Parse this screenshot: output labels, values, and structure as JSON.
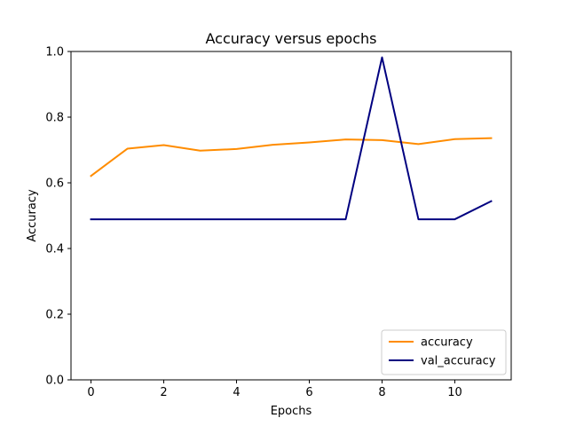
{
  "chart_data": {
    "type": "line",
    "title": "Accuracy versus epochs",
    "xlabel": "Epochs",
    "ylabel": "Accuracy",
    "xlim": [
      -0.55,
      11.55
    ],
    "ylim": [
      0.0,
      1.0
    ],
    "xticks": [
      0,
      2,
      4,
      6,
      8,
      10
    ],
    "xtick_labels": [
      "0",
      "2",
      "4",
      "6",
      "8",
      "10"
    ],
    "yticks": [
      0.0,
      0.2,
      0.4,
      0.6,
      0.8,
      1.0
    ],
    "ytick_labels": [
      "0.0",
      "0.2",
      "0.4",
      "0.6",
      "0.8",
      "1.0"
    ],
    "grid": false,
    "legend_position": "bottom-right",
    "x": [
      0,
      1,
      2,
      3,
      4,
      5,
      6,
      7,
      8,
      9,
      10,
      11
    ],
    "series": [
      {
        "name": "accuracy",
        "color": "#ff8c00",
        "values": [
          0.621,
          0.704,
          0.715,
          0.698,
          0.703,
          0.716,
          0.723,
          0.732,
          0.73,
          0.718,
          0.733,
          0.736
        ]
      },
      {
        "name": "val_accuracy",
        "color": "#000080",
        "values": [
          0.489,
          0.489,
          0.489,
          0.489,
          0.489,
          0.489,
          0.489,
          0.489,
          0.982,
          0.489,
          0.489,
          0.544
        ]
      }
    ]
  }
}
